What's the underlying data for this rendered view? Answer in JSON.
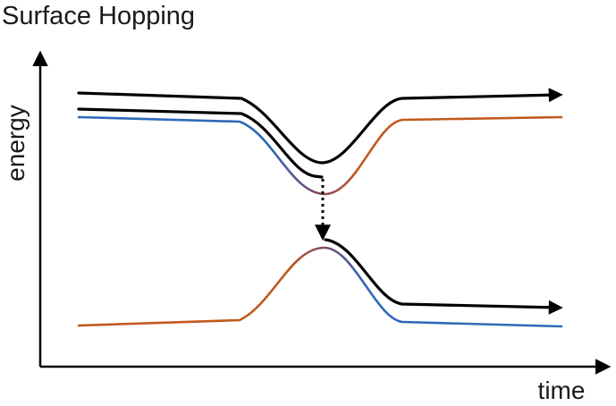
{
  "title": "Surface Hopping",
  "axes": {
    "x_label": "time",
    "y_label": "energy"
  },
  "colors": {
    "axis": "#000000",
    "trajectory": "#000000",
    "state_a": "#2e6ab8",
    "state_b": "#c2581c",
    "crossing_blend": "#7a4a70"
  }
}
